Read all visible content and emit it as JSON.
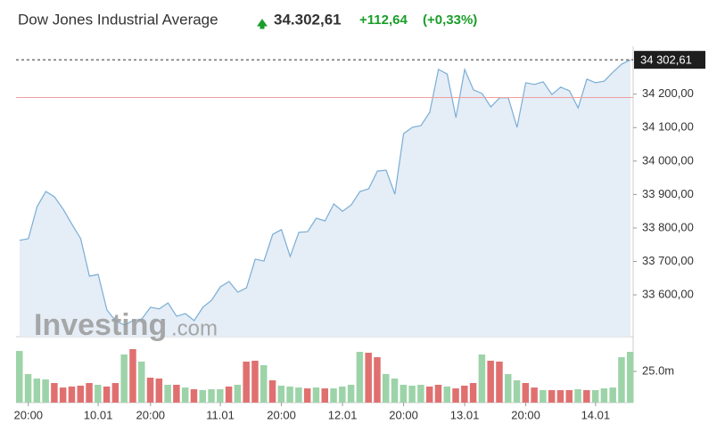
{
  "chart_data": {
    "type": "line",
    "title": "Dow Jones Industrial Average",
    "price": "34.302,61",
    "change": "+112,64",
    "change_pct": "(+0,33%)",
    "watermark": {
      "brand": "Investing",
      "suffix": ".com"
    },
    "categories": [
      null,
      "20:00",
      null,
      null,
      null,
      null,
      null,
      null,
      null,
      "10.01",
      null,
      null,
      null,
      null,
      null,
      "20:00",
      null,
      null,
      null,
      null,
      null,
      null,
      null,
      "11.01",
      null,
      null,
      null,
      null,
      null,
      null,
      "20:00",
      null,
      null,
      null,
      null,
      null,
      null,
      "12.01",
      null,
      null,
      null,
      null,
      null,
      null,
      "20:00",
      null,
      null,
      null,
      null,
      null,
      null,
      "13.01",
      null,
      null,
      null,
      null,
      null,
      null,
      "20:00",
      null,
      null,
      null,
      null,
      null,
      null,
      null,
      "14.01",
      null,
      null,
      null,
      null
    ],
    "series": [
      {
        "name": "Price",
        "color": "#7aaed6",
        "fill": "#e5edf6",
        "values": [
          33763,
          33768,
          33864,
          33909,
          33893,
          33856,
          33811,
          33768,
          33656,
          33661,
          33555,
          33523,
          33510,
          33523,
          33528,
          33563,
          33558,
          33576,
          33536,
          33544,
          33523,
          33563,
          33584,
          33624,
          33640,
          33608,
          33621,
          33707,
          33701,
          33781,
          33795,
          33715,
          33787,
          33789,
          33829,
          33821,
          33872,
          33850,
          33869,
          33909,
          33917,
          33970,
          33973,
          33901,
          34082,
          34101,
          34106,
          34146,
          34274,
          34260,
          34130,
          34274,
          34213,
          34202,
          34162,
          34189,
          34189,
          34101,
          34234,
          34229,
          34237,
          34199,
          34221,
          34210,
          34159,
          34245,
          34234,
          34239,
          34266,
          34290,
          34302.61
        ]
      },
      {
        "name": "Volume",
        "type": "bar",
        "axis": "y2",
        "values": [
          41.4,
          22.9,
          19.3,
          18.6,
          15.7,
          12.1,
          12.9,
          13.6,
          15.7,
          14.3,
          12.9,
          15.7,
          38.6,
          42.9,
          32.9,
          20,
          19.3,
          14.3,
          14.3,
          12.1,
          10.7,
          10,
          10.7,
          10.7,
          12.9,
          14.3,
          32.9,
          33.6,
          30,
          17.9,
          13.6,
          12.9,
          12.1,
          11.4,
          12.1,
          11.4,
          11.4,
          12.9,
          14.3,
          40.7,
          40,
          36.4,
          22.9,
          19.3,
          14.3,
          13.6,
          14.3,
          12.9,
          14.3,
          12.9,
          11.4,
          13.6,
          15.7,
          38.6,
          33.6,
          32.9,
          22.9,
          17.9,
          15.7,
          12.1,
          10,
          10,
          10,
          10,
          10.7,
          10,
          10,
          11.4,
          12.1,
          36.4,
          40.7
        ],
        "colors": [
          "#9dd3a8",
          "#9dd3a8",
          "#9dd3a8",
          "#9dd3a8",
          "#e07070",
          "#e07070",
          "#e07070",
          "#e07070",
          "#e07070",
          "#9dd3a8",
          "#e07070",
          "#e07070",
          "#9dd3a8",
          "#e07070",
          "#9dd3a8",
          "#e07070",
          "#e07070",
          "#9dd3a8",
          "#e07070",
          "#9dd3a8",
          "#e07070",
          "#9dd3a8",
          "#9dd3a8",
          "#9dd3a8",
          "#e07070",
          "#9dd3a8",
          "#e07070",
          "#e07070",
          "#9dd3a8",
          "#e07070",
          "#9dd3a8",
          "#9dd3a8",
          "#9dd3a8",
          "#e07070",
          "#9dd3a8",
          "#e07070",
          "#9dd3a8",
          "#9dd3a8",
          "#9dd3a8",
          "#9dd3a8",
          "#e07070",
          "#e07070",
          "#9dd3a8",
          "#9dd3a8",
          "#9dd3a8",
          "#9dd3a8",
          "#9dd3a8",
          "#e07070",
          "#e07070",
          "#9dd3a8",
          "#e07070",
          "#e07070",
          "#e07070",
          "#9dd3a8",
          "#e07070",
          "#e07070",
          "#9dd3a8",
          "#9dd3a8",
          "#e07070",
          "#e07070",
          "#9dd3a8",
          "#e07070",
          "#e07070",
          "#e07070",
          "#9dd3a8",
          "#e07070",
          "#9dd3a8",
          "#9dd3a8",
          "#9dd3a8",
          "#9dd3a8",
          "#9dd3a8"
        ]
      }
    ],
    "ylim": [
      33475,
      34335
    ],
    "yticks": [
      {
        "value": 33600,
        "label": "33 600,00"
      },
      {
        "value": 33700,
        "label": "33 700,00"
      },
      {
        "value": 33800,
        "label": "33 800,00"
      },
      {
        "value": 33900,
        "label": "33 900,00"
      },
      {
        "value": 34000,
        "label": "34 000,00"
      },
      {
        "value": 34100,
        "label": "34 100,00"
      },
      {
        "value": 34200,
        "label": "34 200,00"
      }
    ],
    "y2lim": [
      0,
      50
    ],
    "y2ticks": [
      {
        "value": 25,
        "label": "25.0m"
      }
    ],
    "last_price": {
      "value": 34302.61,
      "label": "34 302,61"
    },
    "reference_line": {
      "value": 34190,
      "color": "#f0a0a0"
    }
  }
}
